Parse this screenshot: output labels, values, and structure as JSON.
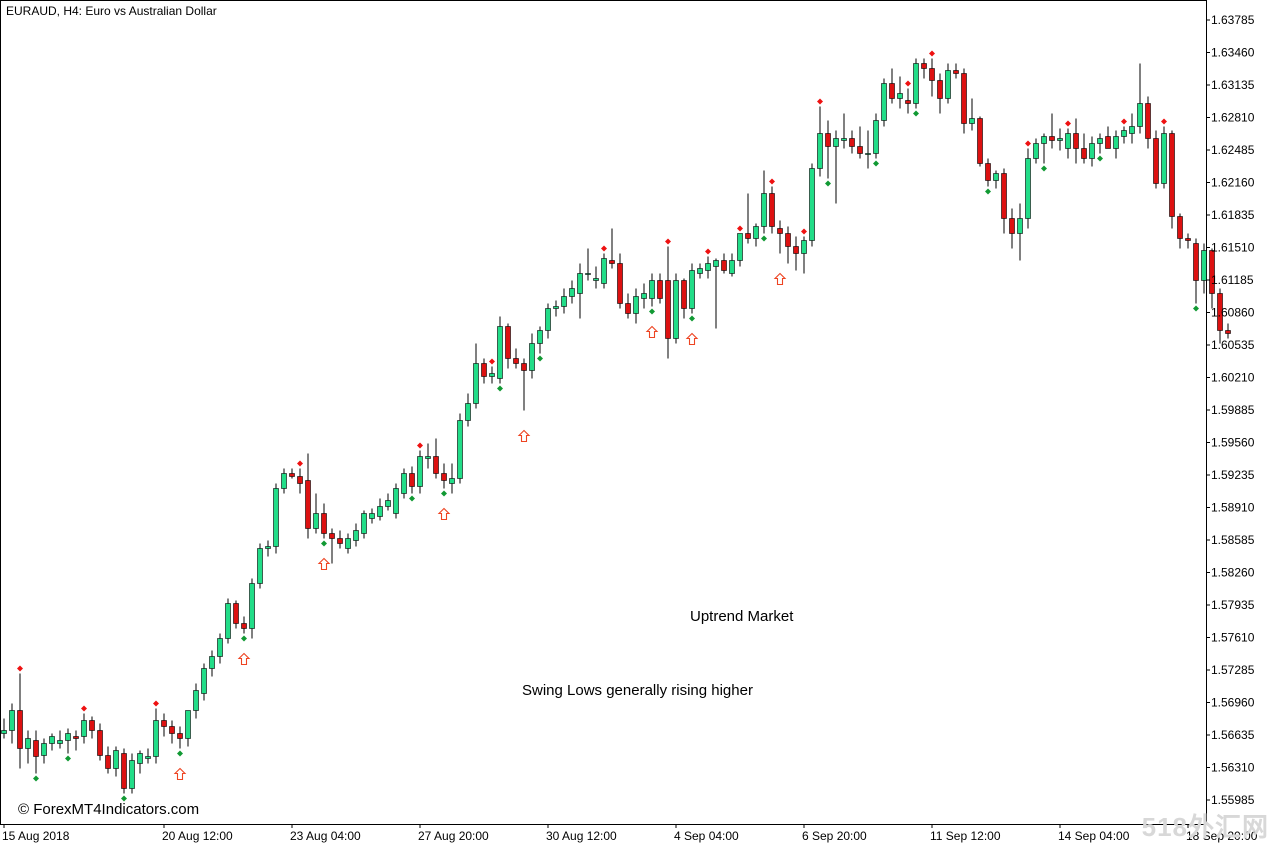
{
  "chart_data": {
    "type": "candlestick",
    "title": "EURAUD, H4:  Euro vs Australian Dollar",
    "annotations": [
      "Uptrend Market",
      "Swing Lows generally rising higher"
    ],
    "credit": "© ForexMT4Indicators.com",
    "watermark": "518外汇网",
    "ylim": [
      1.5575,
      1.6395
    ],
    "y_ticks": [
      "1.63785",
      "1.63460",
      "1.63135",
      "1.62810",
      "1.62485",
      "1.62160",
      "1.61835",
      "1.61510",
      "1.61185",
      "1.60860",
      "1.60535",
      "1.60210",
      "1.59885",
      "1.59560",
      "1.59235",
      "1.58910",
      "1.58585",
      "1.58260",
      "1.57935",
      "1.57610",
      "1.57285",
      "1.56960",
      "1.56635",
      "1.56310",
      "1.55985"
    ],
    "x_labels": [
      "15 Aug 2018",
      "20 Aug 12:00",
      "23 Aug 04:00",
      "27 Aug 20:00",
      "30 Aug 12:00",
      "4 Sep 04:00",
      "6 Sep 20:00",
      "11 Sep 12:00",
      "14 Sep 04:00",
      "18 Sep 20:00"
    ],
    "x_label_index": [
      0,
      20,
      36,
      52,
      68,
      84,
      100,
      116,
      132,
      148
    ],
    "bull_color": "#22dd88",
    "bear_color": "#dd1111",
    "fractal_high_color": "#ee1111",
    "fractal_low_color": "#119933",
    "arrow_color": "#ee4422",
    "candles": [
      {
        "o": 1.5665,
        "h": 1.568,
        "l": 1.566,
        "c": 1.5668
      },
      {
        "o": 1.5668,
        "h": 1.5695,
        "l": 1.5655,
        "c": 1.5688
      },
      {
        "o": 1.5688,
        "h": 1.5725,
        "l": 1.563,
        "c": 1.565
      },
      {
        "o": 1.565,
        "h": 1.5668,
        "l": 1.5635,
        "c": 1.566
      },
      {
        "o": 1.5658,
        "h": 1.5668,
        "l": 1.5625,
        "c": 1.5642
      },
      {
        "o": 1.5643,
        "h": 1.566,
        "l": 1.5635,
        "c": 1.5655
      },
      {
        "o": 1.5655,
        "h": 1.5665,
        "l": 1.5648,
        "c": 1.5662
      },
      {
        "o": 1.5655,
        "h": 1.5668,
        "l": 1.565,
        "c": 1.5658
      },
      {
        "o": 1.5658,
        "h": 1.567,
        "l": 1.5645,
        "c": 1.5665
      },
      {
        "o": 1.5662,
        "h": 1.5668,
        "l": 1.5648,
        "c": 1.566
      },
      {
        "o": 1.5662,
        "h": 1.5685,
        "l": 1.5655,
        "c": 1.5678
      },
      {
        "o": 1.5678,
        "h": 1.5682,
        "l": 1.566,
        "c": 1.5668
      },
      {
        "o": 1.5668,
        "h": 1.5675,
        "l": 1.5638,
        "c": 1.5643
      },
      {
        "o": 1.5643,
        "h": 1.5652,
        "l": 1.5625,
        "c": 1.563
      },
      {
        "o": 1.563,
        "h": 1.5652,
        "l": 1.5622,
        "c": 1.5648
      },
      {
        "o": 1.5645,
        "h": 1.565,
        "l": 1.5605,
        "c": 1.561
      },
      {
        "o": 1.561,
        "h": 1.5645,
        "l": 1.5605,
        "c": 1.5638
      },
      {
        "o": 1.5635,
        "h": 1.5648,
        "l": 1.5625,
        "c": 1.5645
      },
      {
        "o": 1.564,
        "h": 1.565,
        "l": 1.5635,
        "c": 1.5642
      },
      {
        "o": 1.5642,
        "h": 1.569,
        "l": 1.5635,
        "c": 1.5678
      },
      {
        "o": 1.5678,
        "h": 1.5685,
        "l": 1.5662,
        "c": 1.5672
      },
      {
        "o": 1.5672,
        "h": 1.5678,
        "l": 1.5655,
        "c": 1.5665
      },
      {
        "o": 1.5665,
        "h": 1.5672,
        "l": 1.565,
        "c": 1.566
      },
      {
        "o": 1.566,
        "h": 1.568,
        "l": 1.5652,
        "c": 1.5688
      },
      {
        "o": 1.5688,
        "h": 1.5715,
        "l": 1.568,
        "c": 1.5708
      },
      {
        "o": 1.5705,
        "h": 1.5735,
        "l": 1.5698,
        "c": 1.573
      },
      {
        "o": 1.573,
        "h": 1.5748,
        "l": 1.5722,
        "c": 1.5742
      },
      {
        "o": 1.5742,
        "h": 1.5765,
        "l": 1.5735,
        "c": 1.576
      },
      {
        "o": 1.576,
        "h": 1.58,
        "l": 1.5755,
        "c": 1.5795
      },
      {
        "o": 1.5795,
        "h": 1.5798,
        "l": 1.577,
        "c": 1.5775
      },
      {
        "o": 1.5775,
        "h": 1.5782,
        "l": 1.5765,
        "c": 1.577
      },
      {
        "o": 1.577,
        "h": 1.582,
        "l": 1.576,
        "c": 1.5815
      },
      {
        "o": 1.5815,
        "h": 1.5855,
        "l": 1.581,
        "c": 1.585
      },
      {
        "o": 1.585,
        "h": 1.5858,
        "l": 1.5842,
        "c": 1.5852
      },
      {
        "o": 1.5852,
        "h": 1.5915,
        "l": 1.5845,
        "c": 1.591
      },
      {
        "o": 1.591,
        "h": 1.593,
        "l": 1.5905,
        "c": 1.5925
      },
      {
        "o": 1.5925,
        "h": 1.593,
        "l": 1.592,
        "c": 1.5922
      },
      {
        "o": 1.5922,
        "h": 1.593,
        "l": 1.5905,
        "c": 1.5915
      },
      {
        "o": 1.5918,
        "h": 1.5945,
        "l": 1.586,
        "c": 1.587
      },
      {
        "o": 1.587,
        "h": 1.5905,
        "l": 1.5865,
        "c": 1.5885
      },
      {
        "o": 1.5885,
        "h": 1.5895,
        "l": 1.586,
        "c": 1.5865
      },
      {
        "o": 1.5865,
        "h": 1.587,
        "l": 1.5835,
        "c": 1.586
      },
      {
        "o": 1.586,
        "h": 1.5868,
        "l": 1.585,
        "c": 1.5855
      },
      {
        "o": 1.585,
        "h": 1.5865,
        "l": 1.5845,
        "c": 1.586
      },
      {
        "o": 1.5858,
        "h": 1.5875,
        "l": 1.5852,
        "c": 1.5868
      },
      {
        "o": 1.5865,
        "h": 1.5888,
        "l": 1.586,
        "c": 1.5885
      },
      {
        "o": 1.588,
        "h": 1.589,
        "l": 1.5875,
        "c": 1.5885
      },
      {
        "o": 1.5882,
        "h": 1.59,
        "l": 1.5878,
        "c": 1.5892
      },
      {
        "o": 1.5892,
        "h": 1.5905,
        "l": 1.5888,
        "c": 1.5898
      },
      {
        "o": 1.5885,
        "h": 1.5915,
        "l": 1.588,
        "c": 1.591
      },
      {
        "o": 1.5905,
        "h": 1.593,
        "l": 1.59,
        "c": 1.5925
      },
      {
        "o": 1.5925,
        "h": 1.5932,
        "l": 1.5905,
        "c": 1.5912
      },
      {
        "o": 1.5912,
        "h": 1.5948,
        "l": 1.5905,
        "c": 1.5942
      },
      {
        "o": 1.594,
        "h": 1.5955,
        "l": 1.593,
        "c": 1.5942
      },
      {
        "o": 1.5942,
        "h": 1.596,
        "l": 1.592,
        "c": 1.5925
      },
      {
        "o": 1.5925,
        "h": 1.5935,
        "l": 1.591,
        "c": 1.5918
      },
      {
        "o": 1.5915,
        "h": 1.5935,
        "l": 1.5905,
        "c": 1.592
      },
      {
        "o": 1.592,
        "h": 1.5985,
        "l": 1.5915,
        "c": 1.5978
      },
      {
        "o": 1.5978,
        "h": 1.6005,
        "l": 1.5972,
        "c": 1.5995
      },
      {
        "o": 1.5995,
        "h": 1.6055,
        "l": 1.599,
        "c": 1.6035
      },
      {
        "o": 1.6035,
        "h": 1.604,
        "l": 1.6015,
        "c": 1.6022
      },
      {
        "o": 1.6022,
        "h": 1.6032,
        "l": 1.6015,
        "c": 1.6025
      },
      {
        "o": 1.602,
        "h": 1.6082,
        "l": 1.6015,
        "c": 1.6072
      },
      {
        "o": 1.6072,
        "h": 1.6075,
        "l": 1.603,
        "c": 1.604
      },
      {
        "o": 1.604,
        "h": 1.605,
        "l": 1.603,
        "c": 1.6035
      },
      {
        "o": 1.6035,
        "h": 1.604,
        "l": 1.5988,
        "c": 1.6028
      },
      {
        "o": 1.6028,
        "h": 1.6065,
        "l": 1.602,
        "c": 1.6055
      },
      {
        "o": 1.6055,
        "h": 1.6072,
        "l": 1.6045,
        "c": 1.6068
      },
      {
        "o": 1.6068,
        "h": 1.6095,
        "l": 1.606,
        "c": 1.609
      },
      {
        "o": 1.609,
        "h": 1.6098,
        "l": 1.6082,
        "c": 1.6092
      },
      {
        "o": 1.6092,
        "h": 1.611,
        "l": 1.6085,
        "c": 1.6102
      },
      {
        "o": 1.6102,
        "h": 1.6118,
        "l": 1.6095,
        "c": 1.611
      },
      {
        "o": 1.6105,
        "h": 1.6135,
        "l": 1.608,
        "c": 1.6125
      },
      {
        "o": 1.6125,
        "h": 1.615,
        "l": 1.6118,
        "c": 1.6125
      },
      {
        "o": 1.6118,
        "h": 1.6132,
        "l": 1.611,
        "c": 1.612
      },
      {
        "o": 1.6115,
        "h": 1.6145,
        "l": 1.611,
        "c": 1.614
      },
      {
        "o": 1.6138,
        "h": 1.617,
        "l": 1.613,
        "c": 1.6135
      },
      {
        "o": 1.6135,
        "h": 1.6145,
        "l": 1.609,
        "c": 1.6095
      },
      {
        "o": 1.6095,
        "h": 1.6105,
        "l": 1.608,
        "c": 1.6085
      },
      {
        "o": 1.6085,
        "h": 1.611,
        "l": 1.6075,
        "c": 1.6102
      },
      {
        "o": 1.61,
        "h": 1.6115,
        "l": 1.609,
        "c": 1.6105
      },
      {
        "o": 1.61,
        "h": 1.6125,
        "l": 1.6092,
        "c": 1.6118
      },
      {
        "o": 1.6118,
        "h": 1.6125,
        "l": 1.6095,
        "c": 1.61
      },
      {
        "o": 1.6118,
        "h": 1.6152,
        "l": 1.604,
        "c": 1.606
      },
      {
        "o": 1.606,
        "h": 1.6125,
        "l": 1.6055,
        "c": 1.6118
      },
      {
        "o": 1.6118,
        "h": 1.612,
        "l": 1.608,
        "c": 1.609
      },
      {
        "o": 1.609,
        "h": 1.6135,
        "l": 1.6085,
        "c": 1.6128
      },
      {
        "o": 1.6125,
        "h": 1.6135,
        "l": 1.612,
        "c": 1.613
      },
      {
        "o": 1.6128,
        "h": 1.6142,
        "l": 1.612,
        "c": 1.6135
      },
      {
        "o": 1.6132,
        "h": 1.614,
        "l": 1.607,
        "c": 1.6138
      },
      {
        "o": 1.6138,
        "h": 1.6145,
        "l": 1.6125,
        "c": 1.6128
      },
      {
        "o": 1.6125,
        "h": 1.6145,
        "l": 1.6122,
        "c": 1.6138
      },
      {
        "o": 1.6138,
        "h": 1.6165,
        "l": 1.6132,
        "c": 1.6165
      },
      {
        "o": 1.6165,
        "h": 1.6205,
        "l": 1.6155,
        "c": 1.616
      },
      {
        "o": 1.616,
        "h": 1.6175,
        "l": 1.6152,
        "c": 1.6172
      },
      {
        "o": 1.6172,
        "h": 1.6228,
        "l": 1.6165,
        "c": 1.6205
      },
      {
        "o": 1.6205,
        "h": 1.6212,
        "l": 1.6165,
        "c": 1.6172
      },
      {
        "o": 1.617,
        "h": 1.6178,
        "l": 1.6145,
        "c": 1.6165
      },
      {
        "o": 1.6165,
        "h": 1.6172,
        "l": 1.6135,
        "c": 1.6152
      },
      {
        "o": 1.6152,
        "h": 1.6162,
        "l": 1.6128,
        "c": 1.6145
      },
      {
        "o": 1.6145,
        "h": 1.6162,
        "l": 1.6125,
        "c": 1.6158
      },
      {
        "o": 1.6158,
        "h": 1.6235,
        "l": 1.6152,
        "c": 1.623
      },
      {
        "o": 1.623,
        "h": 1.6292,
        "l": 1.6222,
        "c": 1.6265
      },
      {
        "o": 1.6265,
        "h": 1.6278,
        "l": 1.622,
        "c": 1.6252
      },
      {
        "o": 1.6252,
        "h": 1.6268,
        "l": 1.6195,
        "c": 1.626
      },
      {
        "o": 1.6258,
        "h": 1.6285,
        "l": 1.625,
        "c": 1.626
      },
      {
        "o": 1.626,
        "h": 1.6268,
        "l": 1.6245,
        "c": 1.6252
      },
      {
        "o": 1.6252,
        "h": 1.6272,
        "l": 1.624,
        "c": 1.6245
      },
      {
        "o": 1.6245,
        "h": 1.6268,
        "l": 1.623,
        "c": 1.6245
      },
      {
        "o": 1.6245,
        "h": 1.6285,
        "l": 1.624,
        "c": 1.6278
      },
      {
        "o": 1.6278,
        "h": 1.632,
        "l": 1.6272,
        "c": 1.6315
      },
      {
        "o": 1.6315,
        "h": 1.633,
        "l": 1.6295,
        "c": 1.63
      },
      {
        "o": 1.63,
        "h": 1.6322,
        "l": 1.629,
        "c": 1.6305
      },
      {
        "o": 1.6298,
        "h": 1.631,
        "l": 1.6285,
        "c": 1.6295
      },
      {
        "o": 1.6295,
        "h": 1.634,
        "l": 1.629,
        "c": 1.6335
      },
      {
        "o": 1.6335,
        "h": 1.634,
        "l": 1.632,
        "c": 1.633
      },
      {
        "o": 1.633,
        "h": 1.634,
        "l": 1.6302,
        "c": 1.6318
      },
      {
        "o": 1.6318,
        "h": 1.6325,
        "l": 1.6285,
        "c": 1.63
      },
      {
        "o": 1.63,
        "h": 1.6335,
        "l": 1.6295,
        "c": 1.6328
      },
      {
        "o": 1.6328,
        "h": 1.6335,
        "l": 1.632,
        "c": 1.6325
      },
      {
        "o": 1.6325,
        "h": 1.633,
        "l": 1.6265,
        "c": 1.6275
      },
      {
        "o": 1.6275,
        "h": 1.63,
        "l": 1.6268,
        "c": 1.628
      },
      {
        "o": 1.628,
        "h": 1.6282,
        "l": 1.6232,
        "c": 1.6235
      },
      {
        "o": 1.6235,
        "h": 1.624,
        "l": 1.6212,
        "c": 1.6218
      },
      {
        "o": 1.6218,
        "h": 1.6228,
        "l": 1.621,
        "c": 1.6225
      },
      {
        "o": 1.6225,
        "h": 1.623,
        "l": 1.6165,
        "c": 1.618
      },
      {
        "o": 1.618,
        "h": 1.619,
        "l": 1.615,
        "c": 1.6165
      },
      {
        "o": 1.6165,
        "h": 1.6195,
        "l": 1.6138,
        "c": 1.618
      },
      {
        "o": 1.618,
        "h": 1.625,
        "l": 1.617,
        "c": 1.624
      },
      {
        "o": 1.624,
        "h": 1.626,
        "l": 1.6235,
        "c": 1.6255
      },
      {
        "o": 1.6255,
        "h": 1.6265,
        "l": 1.6235,
        "c": 1.6262
      },
      {
        "o": 1.6262,
        "h": 1.6285,
        "l": 1.625,
        "c": 1.6258
      },
      {
        "o": 1.6258,
        "h": 1.627,
        "l": 1.6248,
        "c": 1.626
      },
      {
        "o": 1.625,
        "h": 1.627,
        "l": 1.624,
        "c": 1.6265
      },
      {
        "o": 1.6265,
        "h": 1.628,
        "l": 1.6235,
        "c": 1.625
      },
      {
        "o": 1.625,
        "h": 1.6265,
        "l": 1.6235,
        "c": 1.624
      },
      {
        "o": 1.624,
        "h": 1.6262,
        "l": 1.6232,
        "c": 1.6255
      },
      {
        "o": 1.6255,
        "h": 1.6265,
        "l": 1.6245,
        "c": 1.626
      },
      {
        "o": 1.6262,
        "h": 1.6272,
        "l": 1.625,
        "c": 1.625
      },
      {
        "o": 1.625,
        "h": 1.6268,
        "l": 1.624,
        "c": 1.6262
      },
      {
        "o": 1.6262,
        "h": 1.6272,
        "l": 1.6255,
        "c": 1.6268
      },
      {
        "o": 1.6265,
        "h": 1.6285,
        "l": 1.6255,
        "c": 1.6272
      },
      {
        "o": 1.6272,
        "h": 1.6335,
        "l": 1.6265,
        "c": 1.6295
      },
      {
        "o": 1.6295,
        "h": 1.6302,
        "l": 1.625,
        "c": 1.626
      },
      {
        "o": 1.626,
        "h": 1.6268,
        "l": 1.621,
        "c": 1.6215
      },
      {
        "o": 1.6215,
        "h": 1.6272,
        "l": 1.621,
        "c": 1.6265
      },
      {
        "o": 1.6265,
        "h": 1.6268,
        "l": 1.617,
        "c": 1.6182
      },
      {
        "o": 1.6182,
        "h": 1.6185,
        "l": 1.615,
        "c": 1.616
      },
      {
        "o": 1.616,
        "h": 1.6165,
        "l": 1.615,
        "c": 1.6158
      },
      {
        "o": 1.6155,
        "h": 1.616,
        "l": 1.6095,
        "c": 1.6118
      },
      {
        "o": 1.6118,
        "h": 1.6155,
        "l": 1.6105,
        "c": 1.6148
      },
      {
        "o": 1.6148,
        "h": 1.615,
        "l": 1.609,
        "c": 1.6105
      },
      {
        "o": 1.6105,
        "h": 1.611,
        "l": 1.6055,
        "c": 1.6068
      },
      {
        "o": 1.6068,
        "h": 1.6075,
        "l": 1.606,
        "c": 1.6065
      }
    ],
    "fractal_highs": [
      2,
      10,
      19,
      37,
      52,
      61,
      75,
      83,
      88,
      92,
      96,
      100,
      102,
      113,
      116,
      128,
      133,
      140,
      145
    ],
    "fractal_lows": [
      4,
      8,
      15,
      22,
      30,
      40,
      51,
      55,
      62,
      67,
      81,
      86,
      95,
      103,
      109,
      114,
      123,
      130,
      137,
      149
    ],
    "buy_arrows": [
      22,
      30,
      40,
      55,
      65,
      81,
      86,
      97
    ]
  }
}
